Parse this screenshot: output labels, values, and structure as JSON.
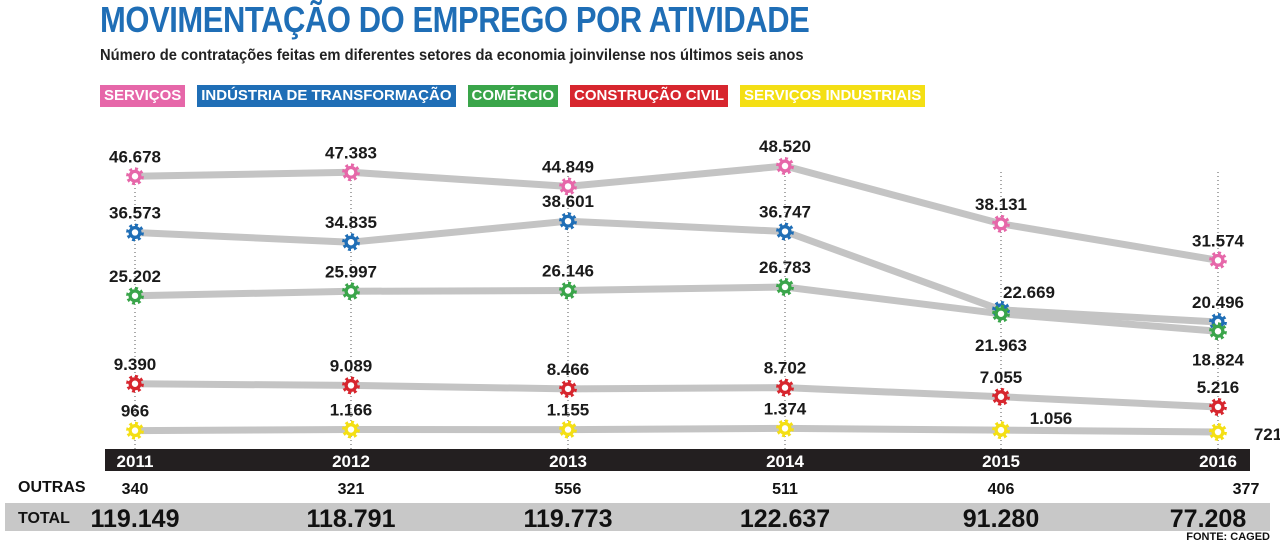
{
  "chart_data": {
    "type": "line",
    "title": "MOVIMENTAÇÃO  DO EMPREGO POR ATIVIDADE",
    "subtitle": "Número de contratações feitas em diferentes setores da economia joinvilense nos últimos seis anos",
    "categories": [
      "2011",
      "2012",
      "2013",
      "2014",
      "2015",
      "2016"
    ],
    "series": [
      {
        "name": "SERVIÇOS",
        "color": "#e667a9",
        "values": [
          46678,
          47383,
          44849,
          48520,
          38131,
          31574
        ],
        "labels": [
          "46.678",
          "47.383",
          "44.849",
          "48.520",
          "38.131",
          "31.574"
        ]
      },
      {
        "name": "INDÚSTRIA DE TRANSFORMAÇÃO",
        "color": "#1f6eb6",
        "values": [
          36573,
          34835,
          38601,
          36747,
          22669,
          20496
        ],
        "labels": [
          "36.573",
          "34.835",
          "38.601",
          "36.747",
          "22.669",
          "20.496"
        ]
      },
      {
        "name": "COMÉRCIO",
        "color": "#3aa54a",
        "values": [
          25202,
          25997,
          26146,
          26783,
          21963,
          18824
        ],
        "labels": [
          "25.202",
          "25.997",
          "26.146",
          "26.783",
          "21.963",
          "18.824"
        ]
      },
      {
        "name": "CONSTRUÇÃO CIVIL",
        "color": "#d7262e",
        "values": [
          9390,
          9089,
          8466,
          8702,
          7055,
          5216
        ],
        "labels": [
          "9.390",
          "9.089",
          "8.466",
          "8.702",
          "7.055",
          "5.216"
        ]
      },
      {
        "name": "SERVIÇOS INDUSTRIAIS",
        "color": "#f4df14",
        "values": [
          966,
          1166,
          1155,
          1374,
          1056,
          721
        ],
        "labels": [
          "966",
          "1.166",
          "1.155",
          "1.374",
          "1.056",
          "721"
        ]
      }
    ],
    "outras": {
      "label": "OUTRAS",
      "values": [
        "340",
        "321",
        "556",
        "511",
        "406",
        "377"
      ]
    },
    "total": {
      "label": "TOTAL",
      "values": [
        "119.149",
        "118.791",
        "119.773",
        "122.637",
        "91.280",
        "77.208"
      ]
    },
    "source": "FONTE: CAGED",
    "line_color": "#c4c4c4"
  }
}
